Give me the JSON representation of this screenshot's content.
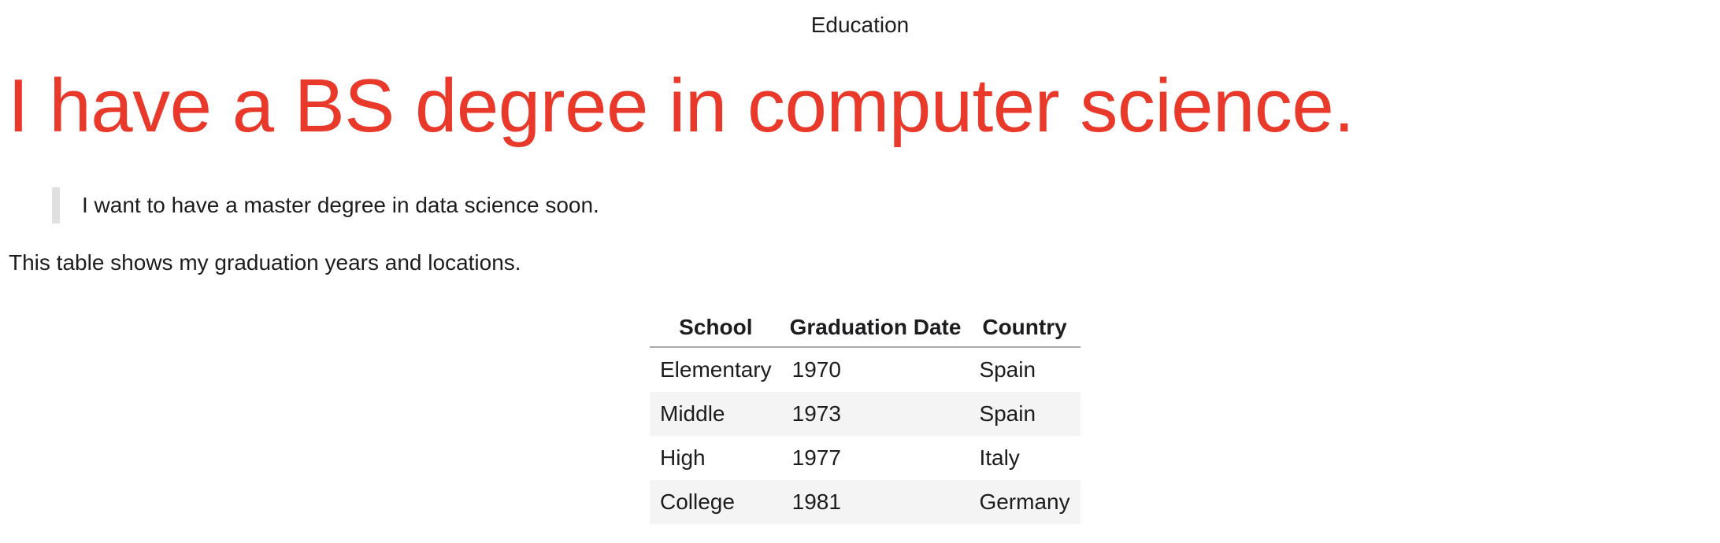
{
  "page": {
    "title": "Education"
  },
  "headline": "I have a BS degree in computer science.",
  "quote": "I want to have a master degree in data science soon.",
  "intro": "This table shows my graduation years and locations.",
  "table": {
    "headers": [
      "School",
      "Graduation Date",
      "Country"
    ],
    "rows": [
      [
        "Elementary",
        "1970",
        "Spain"
      ],
      [
        "Middle",
        "1973",
        "Spain"
      ],
      [
        "High",
        "1977",
        "Italy"
      ],
      [
        "College",
        "1981",
        "Germany"
      ]
    ]
  },
  "colors": {
    "headline": "#e8392b",
    "text": "#1d1d1f",
    "stripe": "#f4f4f4",
    "quote_bar": "#e0e0e0"
  }
}
